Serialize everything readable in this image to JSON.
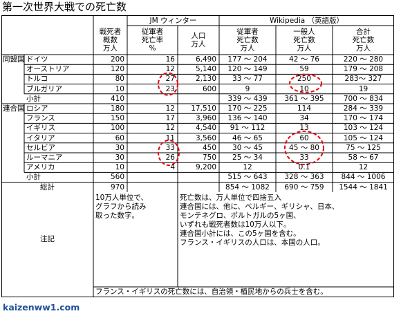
{
  "title": "第一次世界大戦での死亡数",
  "footer_url": "kaizenww1.com",
  "headers": {
    "jm_group": "JM ウィンター",
    "wiki_group": "Wikipedia （英語版）",
    "jm_cols": [
      [
        "戦死者",
        "概数",
        "万人"
      ],
      [
        "従軍者",
        "死亡率",
        "%"
      ]
    ],
    "wiki_cols": [
      [
        "人口",
        "万人"
      ],
      [
        "従軍者",
        "死亡数",
        "万人"
      ],
      [
        "一般人",
        "死亡数",
        "万人"
      ],
      [
        "合計",
        "死亡数",
        "万人"
      ]
    ]
  },
  "groups": [
    {
      "name": "同盟国",
      "rows": [
        [
          "ドイツ",
          "200",
          "16",
          "6,490",
          "177 ～ 204",
          "42 ～ 76",
          "220 ～ 280"
        ],
        [
          "オーストリア",
          "120",
          "12",
          "5,140",
          "120 ～ 149",
          "59",
          "179 ～ 208"
        ],
        [
          "トルコ",
          "80",
          "27",
          "2,130",
          "33 ～ 77",
          "250",
          "283～ 327"
        ],
        [
          "ブルガリア",
          "10",
          "23",
          "600",
          "9",
          "10",
          "19"
        ]
      ],
      "subtotal": [
        "小計",
        "410",
        "",
        "",
        "339 ～ 439",
        "361 ～ 395",
        "700 ～ 834"
      ]
    },
    {
      "name": "連合国",
      "rows": [
        [
          "ロシア",
          "180",
          "12",
          "17,510",
          "170 ～ 225",
          "114",
          "284 ～ 339"
        ],
        [
          "フランス",
          "150",
          "17",
          "3,960",
          "136 ～ 140",
          "34",
          "170 ～ 174"
        ],
        [
          "イギリス",
          "100",
          "12",
          "4,540",
          "91 ～ 112",
          "13",
          "103 ～ 124"
        ],
        [
          "イタリア",
          "60",
          "11",
          "3,560",
          "46 ～ 65",
          "60",
          "105 ～ 124"
        ],
        [
          "セルビア",
          "30",
          "33",
          "450",
          "30 ～ 45",
          "45 ～ 80",
          "75 ～ 125"
        ],
        [
          "ルーマニア",
          "30",
          "26",
          "750",
          "25 ～ 34",
          "33",
          "58 ～ 67"
        ],
        [
          "アメリカ",
          "10",
          "4",
          "9,200",
          "12",
          "0.1",
          "12"
        ]
      ],
      "subtotal": [
        "小計",
        "560",
        "",
        "",
        "515 ～ 643",
        "328 ～ 363",
        "844 ～ 1006"
      ]
    }
  ],
  "total": [
    "総計",
    "970",
    "",
    "",
    "854 ～ 1082",
    "690 ～ 759",
    "1544 ～ 1841"
  ],
  "notes": {
    "label": "注記",
    "jm_note": [
      "10万人単位で、",
      "グラフから読み",
      "取った数字。"
    ],
    "wiki_note": [
      "死亡数は、万人単位で四捨五入",
      "連合国には、他に、ベルギー、ギリシャ、日本、",
      "モンテネグロ、ポルトガルの5ヶ国、",
      "いずれも戦死者数は10万人以下。",
      "連合国小計には、この5ヶ国を含む。",
      "フランス・イギリスの人口は、本国の人口。"
    ],
    "bottom_note": "フランス・イギリスの死亡数には、自治領・植民地からの兵士を含む。"
  },
  "highlight_color": "#e8000b"
}
